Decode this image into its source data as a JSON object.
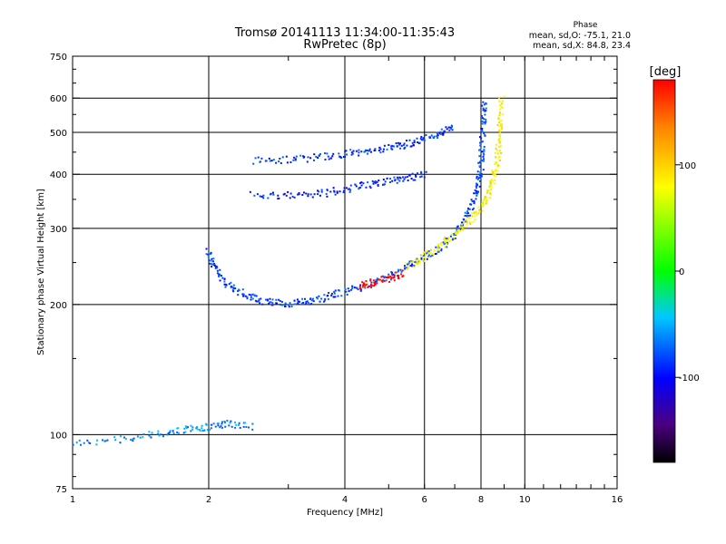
{
  "chart_data": {
    "type": "scatter",
    "title": "Tromsø 20141113 11:34:00-11:35:43",
    "subtitle": "RwPretec (8p)",
    "xlabel": "Frequency [MHz]",
    "ylabel": "Stationary phase Virtual Height [km]",
    "x_scale": "log2",
    "y_scale": "log",
    "xlim": [
      1,
      16
    ],
    "ylim": [
      75,
      750
    ],
    "x_ticks": [
      1,
      2,
      4,
      6,
      8,
      10,
      16
    ],
    "y_ticks": [
      75,
      100,
      200,
      300,
      400,
      500,
      600,
      750
    ],
    "grid": true,
    "phase_info": {
      "heading": "Phase",
      "line_o": "mean, sd,O: -75.1, 21.0",
      "line_x": "mean, sd,X:  84.8, 23.4"
    },
    "colorbar": {
      "label": "[deg]",
      "ticks": [
        100,
        0,
        -100
      ],
      "range": [
        -180,
        180
      ]
    },
    "series": [
      {
        "o_trace": true,
        "phase": -80,
        "points": [
          [
            2.0,
            265
          ],
          [
            2.05,
            245
          ],
          [
            2.15,
            228
          ],
          [
            2.3,
            215
          ],
          [
            2.5,
            207
          ],
          [
            2.75,
            202
          ],
          [
            3.0,
            201
          ],
          [
            3.3,
            203
          ],
          [
            3.6,
            207
          ],
          [
            4.0,
            214
          ],
          [
            4.5,
            222
          ],
          [
            5.0,
            232
          ],
          [
            5.5,
            244
          ],
          [
            6.0,
            256
          ],
          [
            6.5,
            270
          ],
          [
            7.0,
            290
          ],
          [
            7.4,
            315
          ],
          [
            7.7,
            345
          ],
          [
            7.9,
            380
          ],
          [
            8.0,
            420
          ],
          [
            8.05,
            470
          ],
          [
            8.1,
            530
          ],
          [
            8.15,
            600
          ]
        ]
      },
      {
        "x_trace": true,
        "phase": 85,
        "points": [
          [
            5.5,
            245
          ],
          [
            6.0,
            258
          ],
          [
            6.5,
            272
          ],
          [
            7.0,
            290
          ],
          [
            7.5,
            310
          ],
          [
            8.0,
            335
          ],
          [
            8.3,
            360
          ],
          [
            8.5,
            390
          ],
          [
            8.7,
            430
          ],
          [
            8.8,
            480
          ],
          [
            8.85,
            540
          ],
          [
            8.9,
            610
          ]
        ]
      },
      {
        "o_2hop": true,
        "phase": -90,
        "points": [
          [
            2.5,
            360
          ],
          [
            3.0,
            357
          ],
          [
            3.5,
            360
          ],
          [
            4.0,
            368
          ],
          [
            4.5,
            378
          ],
          [
            5.0,
            385
          ],
          [
            5.5,
            392
          ],
          [
            6.0,
            400
          ]
        ]
      },
      {
        "o_upper": true,
        "phase": -85,
        "points": [
          [
            2.5,
            430
          ],
          [
            3.0,
            432
          ],
          [
            3.5,
            438
          ],
          [
            4.0,
            445
          ],
          [
            4.5,
            452
          ],
          [
            5.0,
            460
          ],
          [
            5.5,
            470
          ],
          [
            6.0,
            482
          ],
          [
            6.5,
            495
          ],
          [
            7.0,
            520
          ]
        ]
      },
      {
        "e_layer": true,
        "phase": -60,
        "points": [
          [
            1.0,
            95
          ],
          [
            1.3,
            98
          ],
          [
            1.6,
            101
          ],
          [
            1.8,
            103
          ],
          [
            2.0,
            104
          ],
          [
            2.2,
            106
          ],
          [
            2.5,
            104
          ]
        ]
      },
      {
        "extra": true,
        "phase": 180,
        "points": [
          [
            4.3,
            220
          ],
          [
            4.6,
            225
          ],
          [
            5.0,
            230
          ],
          [
            5.4,
            236
          ]
        ]
      }
    ]
  }
}
